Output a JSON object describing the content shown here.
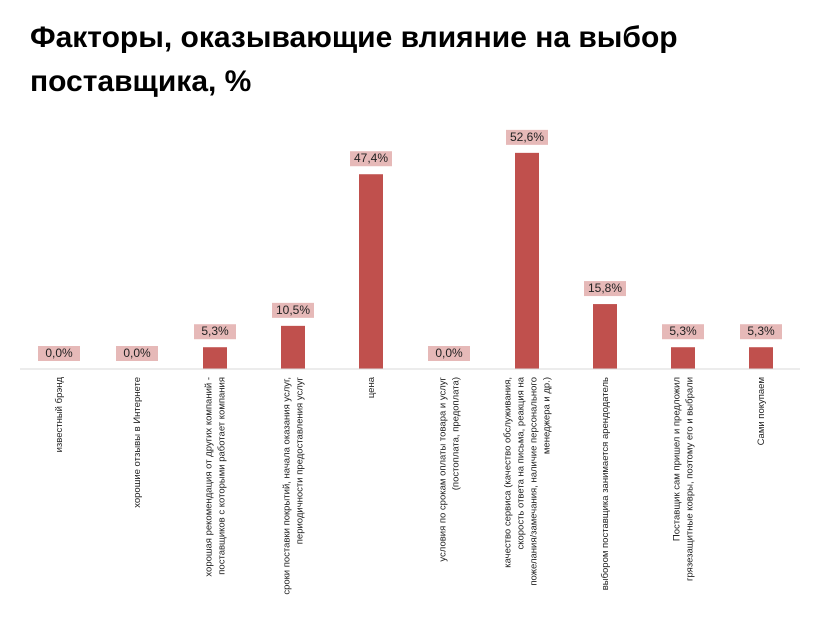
{
  "chart_data": {
    "type": "bar",
    "title": "Факторы, оказывающие влияние на выбор поставщика, %",
    "categories": [
      [
        "известный брэнд"
      ],
      [
        "хорошие отзывы в Интернете"
      ],
      [
        "хорошая рекомендация от других компаний -",
        "поставщиков с которыми работает компания"
      ],
      [
        "сроки поставки покрытий, начала оказания услуг,",
        "периодичности предоставления услуг"
      ],
      [
        "цена"
      ],
      [
        "условия по срокам оплаты товара и услуг",
        "(постоплата, предоплата)"
      ],
      [
        "качество сервиса (качество обслуживания,",
        "скорость ответа на письма, реакция на",
        "пожелания/замечания, наличие персонального",
        "менеджера и др.)"
      ],
      [
        "выбором поставщика занимается арендодатель"
      ],
      [
        "Поставщик сам пришел и предложил",
        "грязезащитные ковры, поэтому его и выбрали"
      ],
      [
        "Сами покупаем"
      ]
    ],
    "values": [
      0.0,
      0.0,
      5.3,
      10.5,
      47.4,
      0.0,
      52.6,
      15.8,
      5.3,
      5.3
    ],
    "data_labels": [
      "0,0%",
      "0,0%",
      "5,3%",
      "10,5%",
      "47,4%",
      "0,0%",
      "52,6%",
      "15,8%",
      "5,3%",
      "5,3%"
    ],
    "ylim": [
      0,
      55
    ],
    "bar_color": "#c0504d",
    "label_bg_color": "#e6b9b8",
    "axis_color": "#d9d9d9",
    "grid": false,
    "legend": "none"
  }
}
